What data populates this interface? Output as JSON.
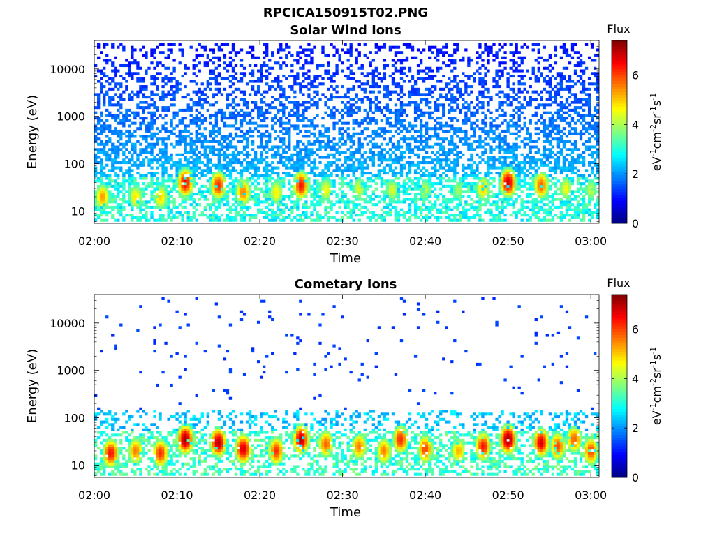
{
  "figure": {
    "title": "RPCICA150915T02.PNG"
  },
  "chart_data": [
    {
      "type": "heatmap",
      "title": "Solar Wind Ions",
      "xlabel": "Time",
      "ylabel": "Energy (eV)",
      "x_ticks": [
        "02:00",
        "02:10",
        "02:20",
        "02:30",
        "02:40",
        "02:50",
        "03:00"
      ],
      "xlim": [
        "02:00",
        "03:01"
      ],
      "y_scale": "log",
      "y_ticks": [
        10,
        100,
        1000,
        10000
      ],
      "y_tick_labels": [
        "10",
        "100",
        "1000",
        "10000"
      ],
      "ylim": [
        5.5,
        40000
      ],
      "colorbar": {
        "title": "Flux",
        "label": "eV-1cm-2sr-1s-1",
        "ticks": [
          "0",
          "2",
          "4",
          "6"
        ],
        "range": [
          0,
          7.4
        ],
        "colormap": "jet"
      },
      "grid": false,
      "features": {
        "background": {
          "energy_range_eV": [
            6,
            35000
          ],
          "flux": 1.2,
          "density_high_energy": 0.35,
          "density_low_energy": 0.85
        },
        "band_low": {
          "energy_range_eV": [
            6,
            50
          ],
          "flux": 3.0
        },
        "bursts": [
          {
            "time": "02:01",
            "energy_eV": 20,
            "flux": 5.4
          },
          {
            "time": "02:05",
            "energy_eV": 20,
            "flux": 4.8
          },
          {
            "time": "02:08",
            "energy_eV": 20,
            "flux": 5.0
          },
          {
            "time": "02:11",
            "energy_eV": 40,
            "flux": 6.6
          },
          {
            "time": "02:15",
            "energy_eV": 35,
            "flux": 6.2
          },
          {
            "time": "02:18",
            "energy_eV": 25,
            "flux": 5.6
          },
          {
            "time": "02:22",
            "energy_eV": 25,
            "flux": 4.8
          },
          {
            "time": "02:25",
            "energy_eV": 35,
            "flux": 6.4
          },
          {
            "time": "02:28",
            "energy_eV": 28,
            "flux": 4.6
          },
          {
            "time": "02:32",
            "energy_eV": 30,
            "flux": 4.4
          },
          {
            "time": "02:36",
            "energy_eV": 28,
            "flux": 4.4
          },
          {
            "time": "02:40",
            "energy_eV": 28,
            "flux": 4.2
          },
          {
            "time": "02:44",
            "energy_eV": 28,
            "flux": 4.0
          },
          {
            "time": "02:47",
            "energy_eV": 30,
            "flux": 5.0
          },
          {
            "time": "02:50",
            "energy_eV": 40,
            "flux": 6.8
          },
          {
            "time": "02:54",
            "energy_eV": 35,
            "flux": 5.8
          },
          {
            "time": "02:57",
            "energy_eV": 30,
            "flux": 4.6
          },
          {
            "time": "03:00",
            "energy_eV": 28,
            "flux": 4.2
          }
        ]
      }
    },
    {
      "type": "heatmap",
      "title": "Cometary Ions",
      "xlabel": "Time",
      "ylabel": "Energy (eV)",
      "x_ticks": [
        "02:00",
        "02:10",
        "02:20",
        "02:30",
        "02:40",
        "02:50",
        "03:00"
      ],
      "xlim": [
        "02:00",
        "03:01"
      ],
      "y_scale": "log",
      "y_ticks": [
        10,
        100,
        1000,
        10000
      ],
      "y_tick_labels": [
        "10",
        "100",
        "1000",
        "10000"
      ],
      "ylim": [
        5.5,
        40000
      ],
      "colorbar": {
        "title": "Flux",
        "label": "eV-1cm-2sr-1s-1",
        "ticks": [
          "0",
          "2",
          "4",
          "6"
        ],
        "range": [
          0,
          7.4
        ],
        "colormap": "jet"
      },
      "grid": false,
      "features": {
        "background": {
          "energy_range_eV": [
            150,
            35000
          ],
          "flux": 1.2,
          "density": 0.02
        },
        "band_mid": {
          "energy_range_eV": [
            50,
            150
          ],
          "flux": 2.4
        },
        "band_low": {
          "energy_range_eV": [
            6,
            50
          ],
          "flux": 3.2
        },
        "bursts": [
          {
            "time": "02:02",
            "energy_eV": 18,
            "flux": 6.4
          },
          {
            "time": "02:05",
            "energy_eV": 20,
            "flux": 5.6
          },
          {
            "time": "02:08",
            "energy_eV": 18,
            "flux": 6.2
          },
          {
            "time": "02:11",
            "energy_eV": 35,
            "flux": 7.2
          },
          {
            "time": "02:15",
            "energy_eV": 30,
            "flux": 7.0
          },
          {
            "time": "02:18",
            "energy_eV": 22,
            "flux": 6.8
          },
          {
            "time": "02:22",
            "energy_eV": 20,
            "flux": 6.2
          },
          {
            "time": "02:25",
            "energy_eV": 35,
            "flux": 7.0
          },
          {
            "time": "02:28",
            "energy_eV": 28,
            "flux": 5.8
          },
          {
            "time": "02:32",
            "energy_eV": 25,
            "flux": 5.6
          },
          {
            "time": "02:35",
            "energy_eV": 20,
            "flux": 5.6
          },
          {
            "time": "02:37",
            "energy_eV": 35,
            "flux": 6.2
          },
          {
            "time": "02:40",
            "energy_eV": 22,
            "flux": 6.0
          },
          {
            "time": "02:44",
            "energy_eV": 20,
            "flux": 5.2
          },
          {
            "time": "02:47",
            "energy_eV": 25,
            "flux": 6.4
          },
          {
            "time": "02:50",
            "energy_eV": 35,
            "flux": 7.2
          },
          {
            "time": "02:54",
            "energy_eV": 30,
            "flux": 6.8
          },
          {
            "time": "02:56",
            "energy_eV": 25,
            "flux": 6.0
          },
          {
            "time": "02:58",
            "energy_eV": 35,
            "flux": 5.8
          },
          {
            "time": "03:00",
            "energy_eV": 20,
            "flux": 6.0
          }
        ]
      }
    }
  ]
}
